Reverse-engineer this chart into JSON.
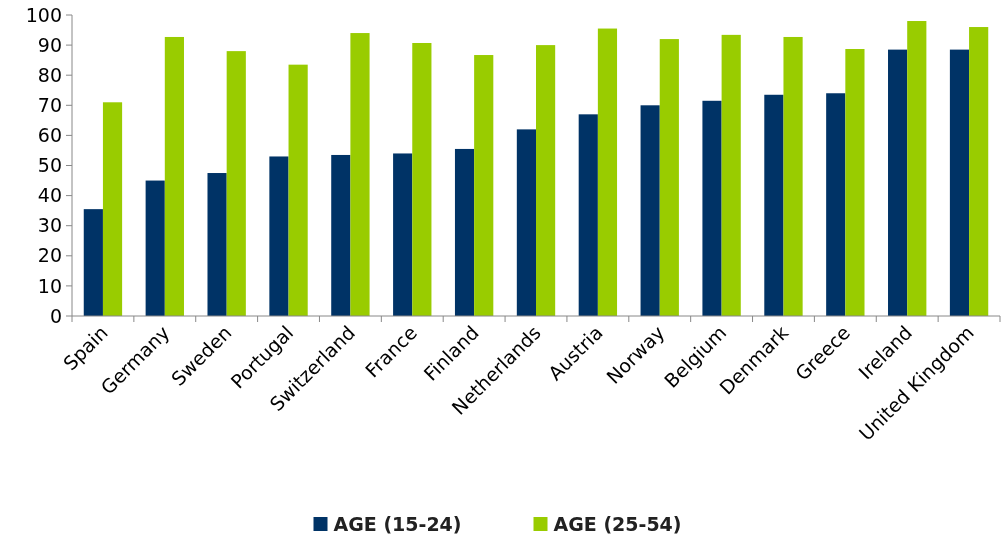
{
  "chart_data": {
    "type": "bar",
    "categories": [
      "Spain",
      "Germany",
      "Sweden",
      "Portugal",
      "Switzerland",
      "France",
      "Finland",
      "Netherlands",
      "Austria",
      "Norway",
      "Belgium",
      "Denmark",
      "Greece",
      "Ireland",
      "United Kingdom"
    ],
    "series": [
      {
        "name": "AGE (15-24)",
        "color": "#003366",
        "values": [
          35.5,
          45,
          47.5,
          53,
          53.5,
          54,
          55.5,
          62,
          67,
          70,
          71.5,
          73.5,
          74,
          88.5,
          88.5
        ]
      },
      {
        "name": "AGE (25-54)",
        "color": "#99cc00",
        "values": [
          71,
          92.7,
          88,
          83.5,
          94,
          90.7,
          86.7,
          90,
          95.5,
          92,
          93.4,
          92.7,
          88.7,
          98,
          96
        ]
      }
    ],
    "ylim": [
      0,
      100
    ],
    "yticks": [
      0,
      10,
      20,
      30,
      40,
      50,
      60,
      70,
      80,
      90,
      100
    ],
    "grid": false,
    "legend": "bottom"
  }
}
